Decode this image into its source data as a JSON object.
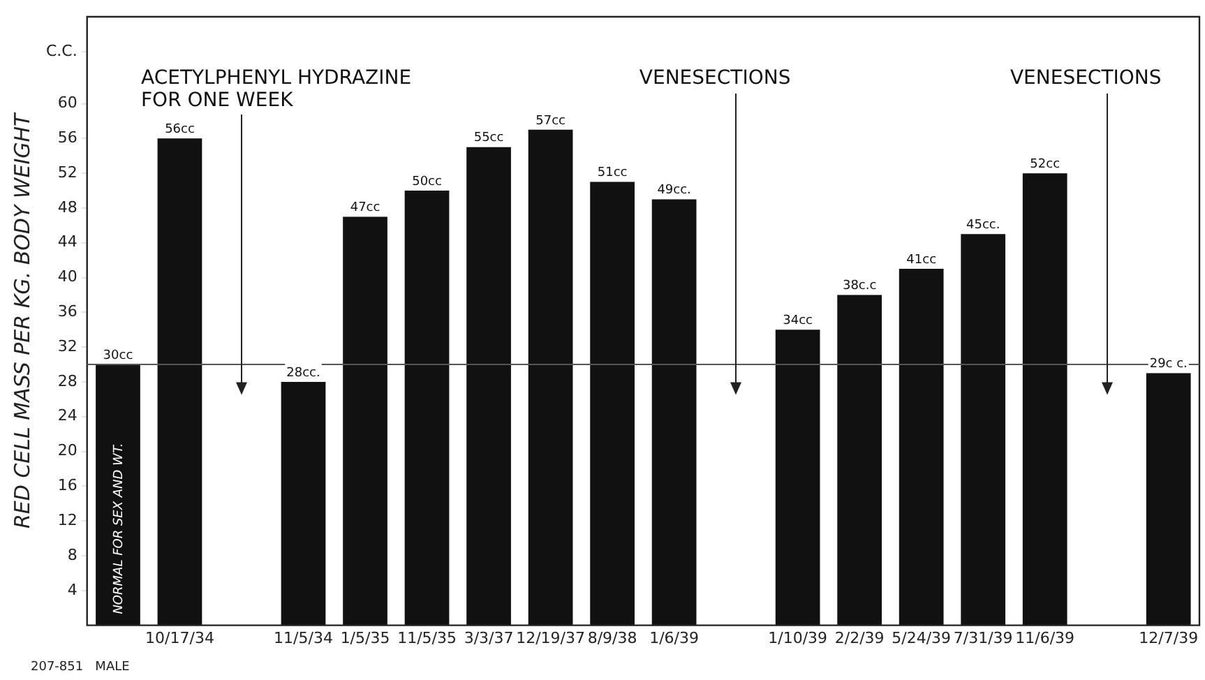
{
  "chart_data": {
    "type": "bar",
    "ylabel": "RED CELL MASS PER KG. BODY WEIGHT",
    "categories": [
      null,
      "10/17/34",
      null,
      "11/5/34",
      "1/5/35",
      "11/5/35",
      "3/3/37",
      "12/19/37",
      "8/9/38",
      "1/6/39",
      null,
      "1/10/39",
      "2/2/39",
      "5/24/39",
      "7/31/39",
      "11/6/39",
      null,
      "12/7/39"
    ],
    "values": [
      30,
      56,
      null,
      28,
      47,
      50,
      55,
      57,
      51,
      49,
      null,
      34,
      38,
      41,
      45,
      52,
      null,
      29
    ],
    "value_labels": [
      "30cc",
      "56cc",
      null,
      "28cc.",
      "47cc",
      "50cc",
      "55cc",
      "57cc",
      "51cc",
      "49cc.",
      null,
      "34cc",
      "38c.c",
      "41cc",
      "45cc.",
      "52cc",
      null,
      "29c c."
    ],
    "color": "#111111",
    "ylim": [
      0,
      70
    ],
    "yticks": [
      4,
      8,
      12,
      16,
      20,
      24,
      28,
      32,
      36,
      40,
      44,
      48,
      52,
      56,
      60,
      {
        "value": 66,
        "label": "C.C."
      }
    ],
    "grid": false,
    "legend": false,
    "ref_lines": [
      {
        "axis": "y",
        "value": 30,
        "color": "#555555"
      }
    ],
    "annotations": [
      "ACETYLPHENYL HYDRAZINE\nFOR ONE WEEK",
      "VENESECTIONS",
      "VENESECTIONS",
      "NORMAL FOR SEX AND WT.",
      "207-851   MALE"
    ]
  }
}
